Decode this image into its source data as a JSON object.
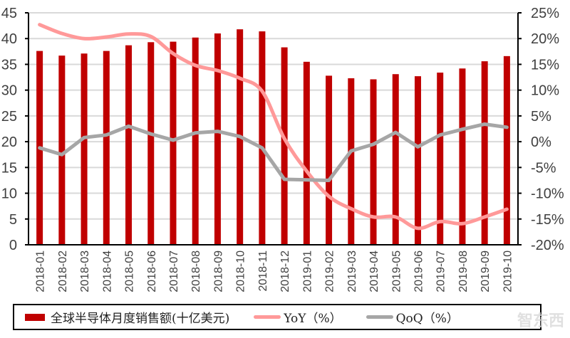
{
  "chart_data": {
    "type": "bar+line",
    "title": "",
    "categories": [
      "2018-01",
      "2018-02",
      "2018-03",
      "2018-04",
      "2018-05",
      "2018-06",
      "2018-07",
      "2018-08",
      "2018-09",
      "2018-10",
      "2018-11",
      "2018-12",
      "2019-01",
      "2019-02",
      "2019-03",
      "2019-04",
      "2019-05",
      "2019-06",
      "2019-07",
      "2019-08",
      "2019-09",
      "2019-10"
    ],
    "series": [
      {
        "name": "全球半导体月度销售额(十亿美元)",
        "type": "bar",
        "axis": "left",
        "color": "#c00000",
        "values": [
          37.6,
          36.7,
          37.1,
          37.6,
          38.7,
          39.3,
          39.4,
          40.2,
          41.0,
          41.8,
          41.4,
          38.3,
          35.5,
          32.8,
          32.3,
          32.1,
          33.1,
          32.7,
          33.4,
          34.2,
          35.6,
          36.6
        ]
      },
      {
        "name": "YoY（%）",
        "type": "line",
        "axis": "right",
        "color": "#ff9999",
        "values": [
          22.7,
          21.0,
          20.0,
          20.3,
          20.9,
          20.4,
          17.1,
          14.8,
          13.8,
          12.3,
          9.8,
          0.6,
          -5.7,
          -10.6,
          -13.0,
          -14.6,
          -14.6,
          -16.8,
          -15.5,
          -15.9,
          -14.6,
          -13.1
        ]
      },
      {
        "name": "QoQ（%）",
        "type": "line",
        "axis": "right",
        "color": "#a6a6a6",
        "values": [
          -1.2,
          -2.5,
          0.8,
          1.3,
          3.0,
          1.5,
          0.3,
          1.7,
          2.0,
          1.0,
          -1.2,
          -7.3,
          -7.4,
          -7.5,
          -1.8,
          -0.5,
          1.8,
          -1.0,
          1.3,
          2.4,
          3.4,
          2.8
        ]
      }
    ],
    "xlabel": "",
    "ylabel": "",
    "y_left": {
      "min": 0,
      "max": 45,
      "step": 5,
      "ticks": [
        "0",
        "5",
        "10",
        "15",
        "20",
        "25",
        "30",
        "35",
        "40",
        "45"
      ]
    },
    "y_right": {
      "min": -20,
      "max": 25,
      "step": 5,
      "ticks": [
        "-20%",
        "-15%",
        "-10%",
        "-5%",
        "0%",
        "5%",
        "10%",
        "15%",
        "20%",
        "25%"
      ]
    },
    "grid": true,
    "legend_position": "bottom"
  },
  "legend": {
    "items": [
      {
        "label": "全球半导体月度销售额(十亿美元)",
        "color": "#c00000"
      },
      {
        "label": "YoY（%）",
        "color": "#ff9999"
      },
      {
        "label": "QoQ（%）",
        "color": "#a6a6a6"
      }
    ]
  },
  "watermark": "智东西"
}
